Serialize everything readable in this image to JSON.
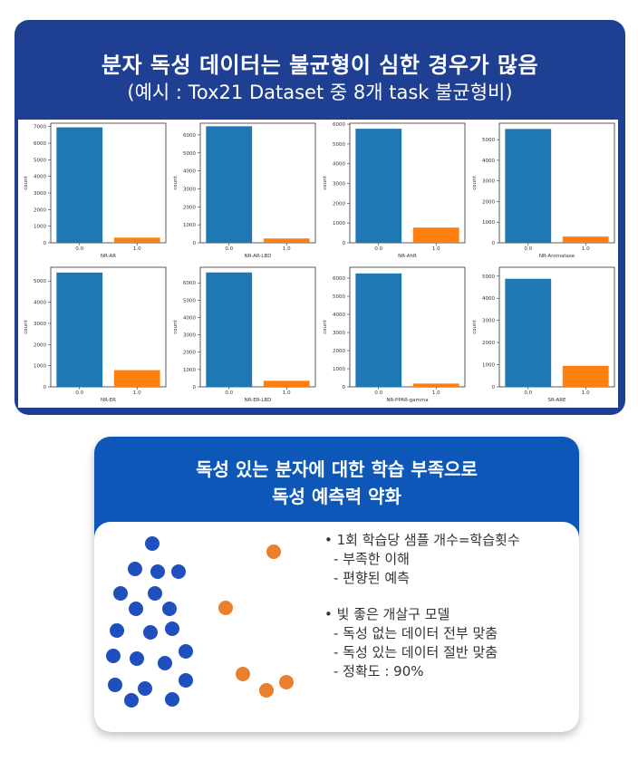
{
  "header": {
    "title": "분자 독성 데이터는 불균형이 심한 경우가 많음",
    "subtitle": "(예시 : Tox21 Dataset 중 8개 task 불균형비)"
  },
  "colors": {
    "blue": "#1f77b4",
    "orange": "#ff7f0e",
    "card_blue": "#1f3f93",
    "box_blue": "#0d57b8",
    "dot_blue": "#1f4fbf",
    "dot_orange": "#ea7f2e"
  },
  "chart_data": [
    {
      "type": "bar",
      "xlabel": "NR-AR",
      "ylabel": "count",
      "categories": [
        "0.0",
        "1.0"
      ],
      "values": [
        6950,
        310
      ],
      "ylim": [
        0,
        7200
      ],
      "yticks": [
        0,
        1000,
        2000,
        3000,
        4000,
        5000,
        6000,
        7000
      ]
    },
    {
      "type": "bar",
      "xlabel": "NR-AR-LBD",
      "ylabel": "count",
      "categories": [
        "0.0",
        "1.0"
      ],
      "values": [
        6480,
        240
      ],
      "ylim": [
        0,
        6650
      ],
      "yticks": [
        0,
        1000,
        2000,
        3000,
        4000,
        5000,
        6000
      ]
    },
    {
      "type": "bar",
      "xlabel": "NR-AhR",
      "ylabel": "count",
      "categories": [
        "0.0",
        "1.0"
      ],
      "values": [
        5770,
        770
      ],
      "ylim": [
        0,
        6050
      ],
      "yticks": [
        0,
        1000,
        2000,
        3000,
        4000,
        5000,
        6000
      ]
    },
    {
      "type": "bar",
      "xlabel": "NR-Aromatase",
      "ylabel": "count",
      "categories": [
        "0.0",
        "1.0"
      ],
      "values": [
        5520,
        300
      ],
      "ylim": [
        0,
        5800
      ],
      "yticks": [
        0,
        1000,
        2000,
        3000,
        4000,
        5000
      ]
    },
    {
      "type": "bar",
      "xlabel": "NR-ER",
      "ylabel": "count",
      "categories": [
        "0.0",
        "1.0"
      ],
      "values": [
        5400,
        790
      ],
      "ylim": [
        0,
        5650
      ],
      "yticks": [
        0,
        1000,
        2000,
        3000,
        4000,
        5000
      ]
    },
    {
      "type": "bar",
      "xlabel": "NR-ER-LBD",
      "ylabel": "count",
      "categories": [
        "0.0",
        "1.0"
      ],
      "values": [
        6600,
        350
      ],
      "ylim": [
        0,
        6900
      ],
      "yticks": [
        0,
        1000,
        2000,
        3000,
        4000,
        5000,
        6000
      ]
    },
    {
      "type": "bar",
      "xlabel": "NR-PPAR-gamma",
      "ylabel": "count",
      "categories": [
        "0.0",
        "1.0"
      ],
      "values": [
        6260,
        180
      ],
      "ylim": [
        0,
        6600
      ],
      "yticks": [
        0,
        1000,
        2000,
        3000,
        4000,
        5000,
        6000
      ]
    },
    {
      "type": "bar",
      "xlabel": "SR-ARE",
      "ylabel": "count",
      "categories": [
        "0.0",
        "1.0"
      ],
      "values": [
        4880,
        950
      ],
      "ylim": [
        0,
        5400
      ],
      "yticks": [
        0,
        1000,
        2000,
        3000,
        4000,
        5000
      ]
    }
  ],
  "box": {
    "title_line1": "독성 있는 분자에 대한 학습 부족으로",
    "title_line2": "독성 예측력 약화",
    "bullet1": "• 1회 학습당 샘플 개수=학습횟수",
    "bullet1_sub1": "- 부족한 이해",
    "bullet1_sub2": "- 편향된 예측",
    "bullet2": "• 빛 좋은 개살구 모델",
    "bullet2_sub1": "- 독성 없는 데이터 전부 맞춤",
    "bullet2_sub2": "- 독성 있는 데이터 절반 맞춤",
    "bullet2_sub3": "- 정확도 : 90%"
  }
}
